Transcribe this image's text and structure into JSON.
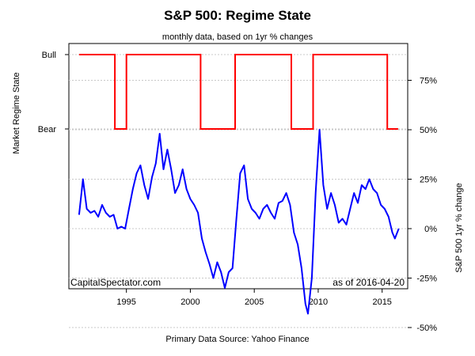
{
  "chart_data": {
    "type": "line",
    "title": "S&P 500: Regime State",
    "subtitle": "monthly data, based on 1yr % changes",
    "xlabel": "Primary Data Source: Yahoo Finance",
    "x_ticks": [
      "1995",
      "2000",
      "2005",
      "2010",
      "2015"
    ],
    "xlim": [
      1990.5,
      2017.0
    ],
    "annotations": {
      "source": "CapitalSpectator.com",
      "asof": "as of  2016-04-20"
    },
    "colors": {
      "regime": "#ff0000",
      "return": "#0000ff"
    },
    "grid": true,
    "panels": [
      {
        "name": "regime",
        "ylabel": "Market Regime State",
        "y_ticks": [
          "Bull",
          "Bear"
        ],
        "series": [
          {
            "x": [
              1991.3,
              1994.1,
              1994.1,
              1995.0,
              1995.0,
              2000.8,
              2000.8,
              2003.5,
              2003.5,
              2007.9,
              2007.9,
              2009.6,
              2009.6,
              2015.4,
              2015.4,
              2016.25
            ],
            "y": [
              1,
              1,
              0,
              0,
              1,
              1,
              0,
              0,
              1,
              1,
              0,
              0,
              1,
              1,
              0,
              0
            ]
          }
        ]
      },
      {
        "name": "returns",
        "ylabel": "S&P 500 1yr % change",
        "y_ticks": [
          "75%",
          "50%",
          "25%",
          "0%",
          "-25%",
          "-50%"
        ],
        "ylim": [
          -0.55,
          0.82
        ],
        "series": [
          {
            "x": [
              1991.3,
              1991.6,
              1991.9,
              1992.2,
              1992.5,
              1992.8,
              1993.1,
              1993.4,
              1993.7,
              1994.0,
              1994.3,
              1994.6,
              1994.9,
              1995.2,
              1995.5,
              1995.8,
              1996.1,
              1996.4,
              1996.7,
              1997.0,
              1997.3,
              1997.6,
              1997.9,
              1998.2,
              1998.5,
              1998.8,
              1999.1,
              1999.4,
              1999.7,
              2000.0,
              2000.3,
              2000.6,
              2000.9,
              2001.2,
              2001.5,
              2001.8,
              2002.1,
              2002.4,
              2002.7,
              2003.0,
              2003.3,
              2003.6,
              2003.9,
              2004.2,
              2004.5,
              2004.8,
              2005.1,
              2005.4,
              2005.7,
              2006.0,
              2006.3,
              2006.6,
              2006.9,
              2007.2,
              2007.5,
              2007.8,
              2008.1,
              2008.4,
              2008.7,
              2009.0,
              2009.2,
              2009.5,
              2009.8,
              2010.1,
              2010.4,
              2010.7,
              2011.0,
              2011.3,
              2011.6,
              2011.9,
              2012.2,
              2012.5,
              2012.8,
              2013.1,
              2013.4,
              2013.7,
              2014.0,
              2014.3,
              2014.6,
              2014.9,
              2015.2,
              2015.5,
              2015.8,
              2016.0,
              2016.3
            ],
            "y": [
              0.07,
              0.25,
              0.1,
              0.08,
              0.09,
              0.06,
              0.12,
              0.08,
              0.06,
              0.07,
              0.0,
              0.01,
              0.0,
              0.1,
              0.2,
              0.28,
              0.32,
              0.22,
              0.15,
              0.26,
              0.33,
              0.48,
              0.3,
              0.4,
              0.3,
              0.18,
              0.22,
              0.3,
              0.2,
              0.15,
              0.12,
              0.08,
              -0.05,
              -0.12,
              -0.18,
              -0.25,
              -0.17,
              -0.22,
              -0.3,
              -0.22,
              -0.2,
              0.05,
              0.28,
              0.32,
              0.15,
              0.1,
              0.08,
              0.05,
              0.1,
              0.12,
              0.08,
              0.05,
              0.13,
              0.14,
              0.18,
              0.12,
              -0.02,
              -0.08,
              -0.2,
              -0.38,
              -0.43,
              -0.25,
              0.18,
              0.5,
              0.22,
              0.1,
              0.18,
              0.12,
              0.03,
              0.05,
              0.02,
              0.1,
              0.18,
              0.13,
              0.22,
              0.2,
              0.25,
              0.2,
              0.18,
              0.12,
              0.1,
              0.06,
              -0.02,
              -0.05,
              0.0
            ]
          }
        ]
      }
    ]
  }
}
